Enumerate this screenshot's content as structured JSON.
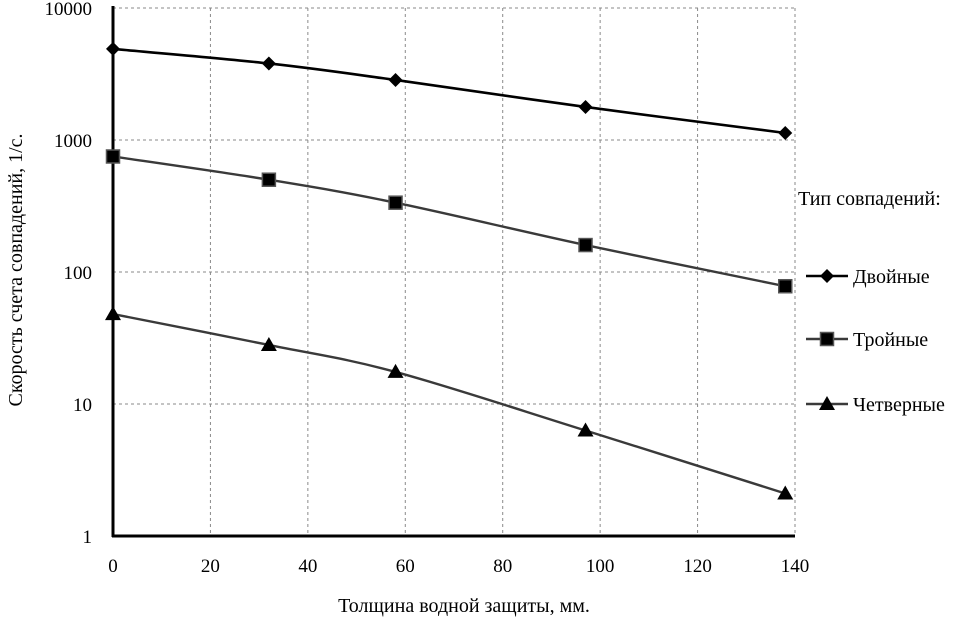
{
  "chart_data": {
    "type": "line",
    "xlabel": "Толщина  водной защиты, мм.",
    "ylabel": "Скорость счета  совпадений,  1/с.",
    "y_scale": "log",
    "xlim": [
      0,
      140
    ],
    "ylim": [
      1,
      10000
    ],
    "x_ticks": [
      "0",
      "20",
      "40",
      "60",
      "80",
      "100",
      "120",
      "140"
    ],
    "y_ticks": [
      "1",
      "10",
      "100",
      "1000",
      "10000"
    ],
    "grid": true,
    "legend_title": "Тип совпадений:",
    "legend_position": "right",
    "series": [
      {
        "name": "Двойные",
        "marker": "diamond",
        "color": "#000000",
        "x": [
          0,
          32,
          58,
          97,
          138
        ],
        "y": [
          4900,
          3800,
          2850,
          1780,
          1130
        ]
      },
      {
        "name": "Тройные",
        "marker": "square",
        "color": "#3a3a3a",
        "x": [
          0,
          32,
          58,
          97,
          138
        ],
        "y": [
          750,
          500,
          335,
          160,
          78
        ]
      },
      {
        "name": "Четверные",
        "marker": "triangle",
        "color": "#3a3a3a",
        "x": [
          0,
          32,
          58,
          97,
          138
        ],
        "y": [
          48,
          28,
          17.5,
          6.3,
          2.1
        ]
      }
    ]
  }
}
